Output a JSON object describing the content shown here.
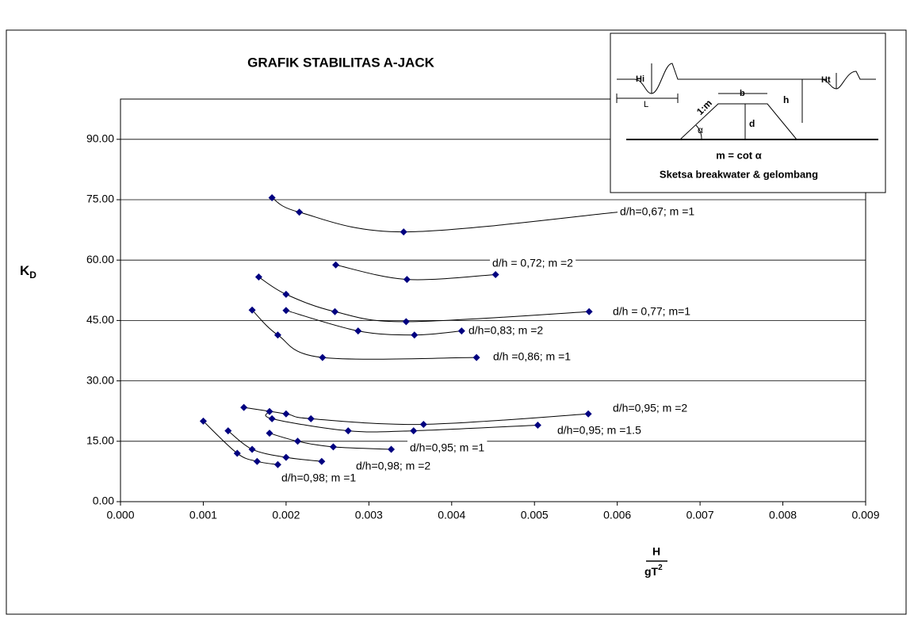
{
  "chart_data": {
    "type": "scatter-smooth",
    "title": "GRAFIK STABILITAS A-JACK",
    "ylabel": "K",
    "ylabel_sub": "D",
    "xlabel_top": "H",
    "xlabel_bottom": "gT",
    "xlabel_sup": "2",
    "xlim": [
      0,
      0.009
    ],
    "xticks": [
      {
        "value": 0,
        "label": "0.000"
      },
      {
        "value": 0.001,
        "label": "0.001"
      },
      {
        "value": 0.002,
        "label": "0.002"
      },
      {
        "value": 0.003,
        "label": "0.003"
      },
      {
        "value": 0.004,
        "label": "0.004"
      },
      {
        "value": 0.005,
        "label": "0.005"
      },
      {
        "value": 0.006,
        "label": "0.006"
      },
      {
        "value": 0.007,
        "label": "0.007"
      },
      {
        "value": 0.008,
        "label": "0.008"
      },
      {
        "value": 0.009,
        "label": "0.009"
      }
    ],
    "ylim": [
      0,
      100
    ],
    "yticks": [
      {
        "value": 0,
        "label": "0.00"
      },
      {
        "value": 15,
        "label": "15.00"
      },
      {
        "value": 30,
        "label": "30.00"
      },
      {
        "value": 45,
        "label": "45.00"
      },
      {
        "value": 60,
        "label": "60.00"
      },
      {
        "value": 75,
        "label": "75.00"
      },
      {
        "value": 90,
        "label": "90.00"
      }
    ],
    "grid": true,
    "marker_color": "#000080",
    "line_color": "#000000",
    "series": [
      {
        "name": "d/h=0,67; m =1",
        "x": [
          0.00183,
          0.00216,
          0.00342,
          0.00605
        ],
        "values": [
          75.5,
          71.9,
          67.0,
          72.0
        ]
      },
      {
        "name": "d/h = 0,72; m =2",
        "x": [
          0.0026,
          0.00346,
          0.00453
        ],
        "values": [
          58.8,
          55.2,
          56.4
        ]
      },
      {
        "name": "d/h = 0,77; m=1",
        "x": [
          0.00167,
          0.002,
          0.00259,
          0.00345,
          0.00566
        ],
        "values": [
          55.8,
          51.5,
          47.2,
          44.7,
          47.2
        ]
      },
      {
        "name": "d/h=0,83; m =2",
        "x": [
          0.002,
          0.00287,
          0.00355,
          0.00412
        ],
        "values": [
          47.5,
          42.4,
          41.4,
          42.4
        ]
      },
      {
        "name": "d/h =0,86; m =1",
        "x": [
          0.00159,
          0.0019,
          0.00244,
          0.0043
        ],
        "values": [
          47.6,
          41.4,
          35.8,
          35.8
        ]
      },
      {
        "name": "d/h=0,95; m =2",
        "x": [
          0.00149,
          0.002,
          0.0023,
          0.00366,
          0.00565
        ],
        "values": [
          23.4,
          21.8,
          20.6,
          19.2,
          21.8
        ]
      },
      {
        "name": "d/h=0,95; m =1.5",
        "x": [
          0.0018,
          0.00183,
          0.00275,
          0.00354,
          0.00504
        ],
        "values": [
          22.4,
          20.6,
          17.6,
          17.6,
          19.0
        ]
      },
      {
        "name": "d/h=0,95; m =1",
        "x": [
          0.0018,
          0.00214,
          0.00257,
          0.00327
        ],
        "values": [
          17.0,
          15.0,
          13.6,
          13.0
        ]
      },
      {
        "name": "d/h=0,98; m =2",
        "x": [
          0.0013,
          0.00159,
          0.002,
          0.00243
        ],
        "values": [
          17.6,
          13.0,
          11.0,
          10.0
        ]
      },
      {
        "name": "d/h=0,98; m =1",
        "x": [
          0.001,
          0.00141,
          0.00165,
          0.0019
        ],
        "values": [
          20.0,
          12.0,
          10.0,
          9.2
        ]
      }
    ]
  },
  "inset": {
    "hi": "Hi",
    "l": "L",
    "slope": "1:m",
    "b": "b",
    "alpha": "α",
    "d": "d",
    "h": "h",
    "ht": "Ht",
    "formula": "m = cot α",
    "caption": "Sketsa breakwater & gelombang"
  }
}
